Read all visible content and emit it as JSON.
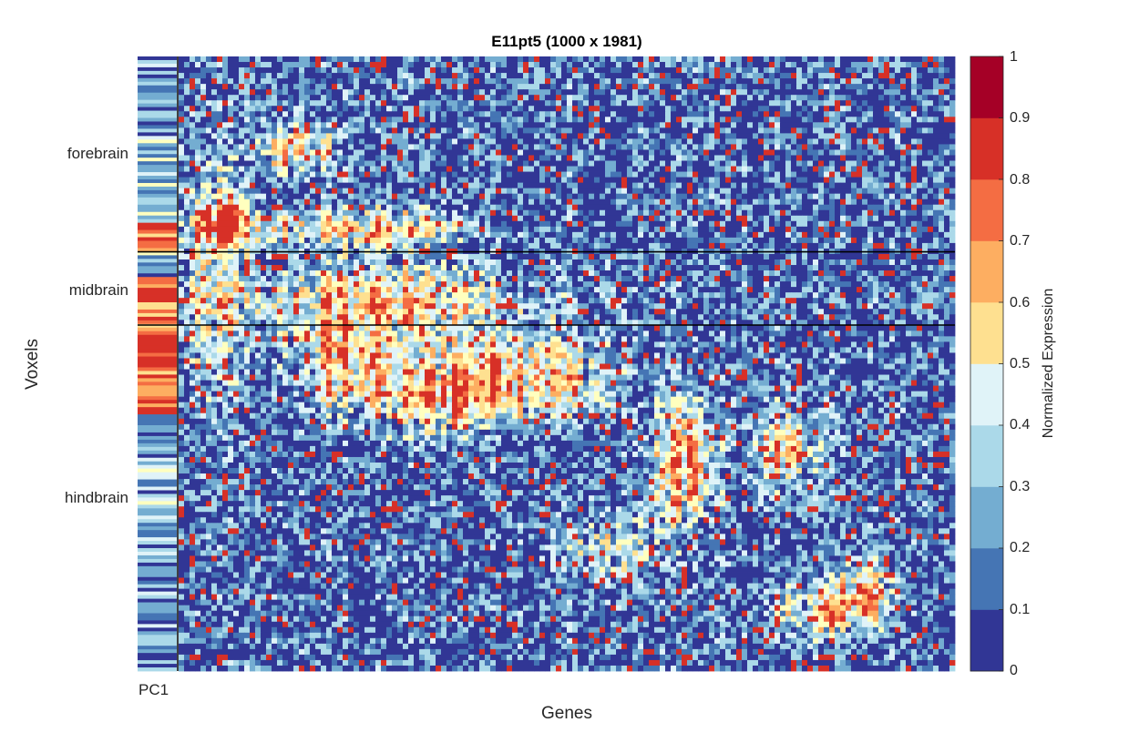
{
  "chart_data": {
    "type": "heatmap",
    "title": "E11pt5 (1000 x 1981)",
    "xlabel": "Genes",
    "ylabel": "Voxels",
    "side_column_label": "PC1",
    "regions": [
      {
        "name": "forebrain",
        "voxel_fraction": [
          0.0,
          0.318
        ]
      },
      {
        "name": "midbrain",
        "voxel_fraction": [
          0.318,
          0.437
        ]
      },
      {
        "name": "hindbrain",
        "voxel_fraction": [
          0.437,
          1.0
        ]
      }
    ],
    "rows": 1000,
    "cols": 1981,
    "colorbar": {
      "label": "Normalized Expression",
      "range": [
        0,
        1
      ],
      "ticks": [
        "0",
        "0.1",
        "0.2",
        "0.3",
        "0.4",
        "0.5",
        "0.6",
        "0.7",
        "0.8",
        "0.9",
        "1"
      ],
      "bins": 10,
      "colors": [
        "#313695",
        "#4575b4",
        "#74add1",
        "#abd9e9",
        "#e0f3f8",
        "#ffffbf",
        "#fee090",
        "#fdae61",
        "#f46d43",
        "#d73027",
        "#a50026"
      ]
    },
    "grid": false,
    "legend": "colorbar-right"
  }
}
